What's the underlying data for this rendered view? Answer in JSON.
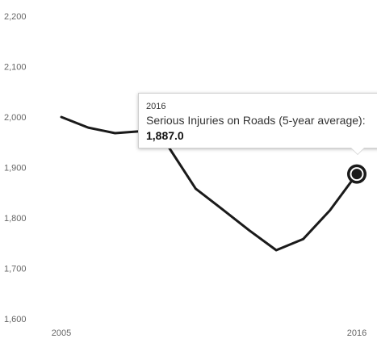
{
  "chart_data": {
    "type": "line",
    "title": "",
    "xlabel": "",
    "ylabel": "",
    "x": [
      2005,
      2006,
      2007,
      2008,
      2009,
      2010,
      2011,
      2012,
      2013,
      2014,
      2015,
      2016
    ],
    "series": [
      {
        "name": "Serious Injuries on Roads (5-year average)",
        "values": [
          2000,
          1979,
          1968,
          1972,
          1940,
          1858,
          1817,
          1775,
          1736,
          1758,
          1815,
          1887
        ],
        "color": "#1a1a1a"
      }
    ],
    "ylim": [
      1600,
      2200
    ],
    "y_ticks": [
      1600,
      1700,
      1800,
      1900,
      2000,
      2100,
      2200
    ],
    "y_tick_labels": [
      "1,600",
      "1,700",
      "1,800",
      "1,900",
      "2,000",
      "2,100",
      "2,200"
    ],
    "x_tick_labels": [
      {
        "x": 2005,
        "label": "2005"
      },
      {
        "x": 2016,
        "label": "2016"
      }
    ],
    "grid": false,
    "legend": "none",
    "highlight": {
      "x": 2016,
      "value": 1887
    }
  },
  "tooltip": {
    "year": "2016",
    "series": "Serious Injuries on Roads (5-year average):",
    "value": "1,887.0"
  }
}
